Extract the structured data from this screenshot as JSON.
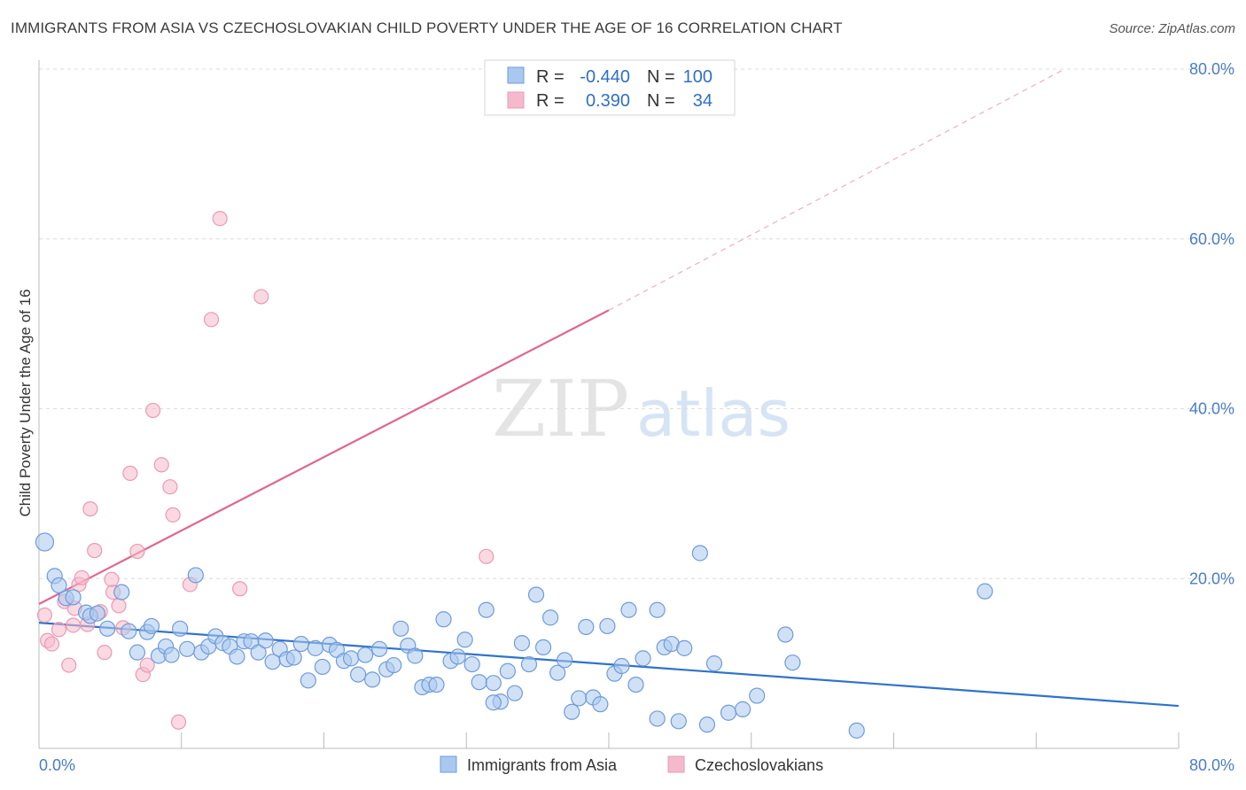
{
  "title": "IMMIGRANTS FROM ASIA VS CZECHOSLOVAKIAN CHILD POVERTY UNDER THE AGE OF 16 CORRELATION CHART",
  "source": "Source: ZipAtlas.com",
  "watermark": {
    "zip": "ZIP",
    "atlas": "atlas"
  },
  "colors": {
    "blue_fill": "#a9c8ef",
    "blue_stroke": "#6f9bd8",
    "blue_line": "#2f73c9",
    "pink_fill": "#f5b9cc",
    "pink_stroke": "#e99ab3",
    "pink_line": "#e0668f",
    "accent_text": "#4a7cc7",
    "grid": "#dddddd"
  },
  "legend": {
    "rows": [
      {
        "r_label": "R =",
        "r_value": "-0.440",
        "n_label": "N =",
        "n_value": "100",
        "series": "blue"
      },
      {
        "r_label": "R =",
        "r_value": "0.390",
        "n_label": "N =",
        "n_value": "34",
        "series": "pink"
      }
    ]
  },
  "chart_data": {
    "type": "scatter",
    "title": "IMMIGRANTS FROM ASIA VS CZECHOSLOVAKIAN CHILD POVERTY UNDER THE AGE OF 16 CORRELATION CHART",
    "xlabel": "",
    "ylabel": "Child Poverty Under the Age of 16",
    "xlim": [
      0,
      80
    ],
    "ylim": [
      0,
      80
    ],
    "x_tick_labels": [
      "0.0%",
      "80.0%"
    ],
    "y_ticks": [
      20,
      40,
      60,
      80
    ],
    "y_tick_labels": [
      "20.0%",
      "40.0%",
      "60.0%",
      "80.0%"
    ],
    "grid": true,
    "legend_position": "top-center",
    "series": [
      {
        "name": "Immigrants from Asia",
        "color": "#a9c8ef",
        "trend": {
          "x": [
            0,
            80
          ],
          "y": [
            14.8,
            5.0
          ],
          "style": "solid"
        },
        "points": [
          [
            0.4,
            24.3
          ],
          [
            1.1,
            20.3
          ],
          [
            1.4,
            19.2
          ],
          [
            1.9,
            17.7
          ],
          [
            2.4,
            17.8
          ],
          [
            3.3,
            16.0
          ],
          [
            3.6,
            15.6
          ],
          [
            4.1,
            15.9
          ],
          [
            4.8,
            14.1
          ],
          [
            5.8,
            18.4
          ],
          [
            6.3,
            13.8
          ],
          [
            6.9,
            11.3
          ],
          [
            7.6,
            13.7
          ],
          [
            7.9,
            14.4
          ],
          [
            8.4,
            10.9
          ],
          [
            8.9,
            12.0
          ],
          [
            9.3,
            11.0
          ],
          [
            9.9,
            14.1
          ],
          [
            10.4,
            11.7
          ],
          [
            11.0,
            20.4
          ],
          [
            11.4,
            11.3
          ],
          [
            11.9,
            12.0
          ],
          [
            12.4,
            13.2
          ],
          [
            12.9,
            12.4
          ],
          [
            13.4,
            12.0
          ],
          [
            13.9,
            10.8
          ],
          [
            14.4,
            12.6
          ],
          [
            14.9,
            12.6
          ],
          [
            15.4,
            11.3
          ],
          [
            15.9,
            12.7
          ],
          [
            16.4,
            10.2
          ],
          [
            16.9,
            11.7
          ],
          [
            17.4,
            10.5
          ],
          [
            17.9,
            10.7
          ],
          [
            18.4,
            12.3
          ],
          [
            18.9,
            8.0
          ],
          [
            19.4,
            11.8
          ],
          [
            19.9,
            9.6
          ],
          [
            20.4,
            12.2
          ],
          [
            20.9,
            11.6
          ],
          [
            21.4,
            10.3
          ],
          [
            21.9,
            10.6
          ],
          [
            22.4,
            8.7
          ],
          [
            22.9,
            11.0
          ],
          [
            23.4,
            8.1
          ],
          [
            23.9,
            11.7
          ],
          [
            24.4,
            9.3
          ],
          [
            24.9,
            9.8
          ],
          [
            25.4,
            14.1
          ],
          [
            25.9,
            12.1
          ],
          [
            26.4,
            10.9
          ],
          [
            26.9,
            7.2
          ],
          [
            27.4,
            7.5
          ],
          [
            27.9,
            7.5
          ],
          [
            28.4,
            15.2
          ],
          [
            28.9,
            10.3
          ],
          [
            29.4,
            10.8
          ],
          [
            29.9,
            12.8
          ],
          [
            30.4,
            9.9
          ],
          [
            30.9,
            7.8
          ],
          [
            31.4,
            16.3
          ],
          [
            31.9,
            7.7
          ],
          [
            32.4,
            5.5
          ],
          [
            32.9,
            9.1
          ],
          [
            33.4,
            6.5
          ],
          [
            33.9,
            12.4
          ],
          [
            34.4,
            9.9
          ],
          [
            34.9,
            18.1
          ],
          [
            35.4,
            11.9
          ],
          [
            35.9,
            15.4
          ],
          [
            36.4,
            8.9
          ],
          [
            36.9,
            10.4
          ],
          [
            37.4,
            4.3
          ],
          [
            37.9,
            5.9
          ],
          [
            38.4,
            14.3
          ],
          [
            38.9,
            6.0
          ],
          [
            39.4,
            5.2
          ],
          [
            39.9,
            14.4
          ],
          [
            40.4,
            8.8
          ],
          [
            40.9,
            9.7
          ],
          [
            41.4,
            16.3
          ],
          [
            41.9,
            7.5
          ],
          [
            42.4,
            10.6
          ],
          [
            43.4,
            16.3
          ],
          [
            43.9,
            11.9
          ],
          [
            44.4,
            12.3
          ],
          [
            44.9,
            3.2
          ],
          [
            45.3,
            11.8
          ],
          [
            46.4,
            23.0
          ],
          [
            46.9,
            2.8
          ],
          [
            47.4,
            10.0
          ],
          [
            48.4,
            4.2
          ],
          [
            49.4,
            4.6
          ],
          [
            50.4,
            6.2
          ],
          [
            52.4,
            13.4
          ],
          [
            52.9,
            10.1
          ],
          [
            57.4,
            2.1
          ],
          [
            66.4,
            18.5
          ],
          [
            43.4,
            3.5
          ],
          [
            31.9,
            5.4
          ]
        ]
      },
      {
        "name": "Czechoslovakians",
        "color": "#f5b9cc",
        "trend": {
          "x": [
            0,
            40
          ],
          "y": [
            17.0,
            51.6
          ],
          "style": "solid",
          "dashed_to": [
            72,
            80
          ]
        },
        "points": [
          [
            0.4,
            15.7
          ],
          [
            0.6,
            12.7
          ],
          [
            0.9,
            12.3
          ],
          [
            1.4,
            14.0
          ],
          [
            1.8,
            17.3
          ],
          [
            2.1,
            9.8
          ],
          [
            2.4,
            14.5
          ],
          [
            2.8,
            19.3
          ],
          [
            3.0,
            20.1
          ],
          [
            3.4,
            14.6
          ],
          [
            3.6,
            28.2
          ],
          [
            3.9,
            23.3
          ],
          [
            4.3,
            16.1
          ],
          [
            4.6,
            11.3
          ],
          [
            5.2,
            18.4
          ],
          [
            5.6,
            16.8
          ],
          [
            5.9,
            14.2
          ],
          [
            6.4,
            32.4
          ],
          [
            6.9,
            23.2
          ],
          [
            7.3,
            8.7
          ],
          [
            7.6,
            9.8
          ],
          [
            8.0,
            39.8
          ],
          [
            8.6,
            33.4
          ],
          [
            9.2,
            30.8
          ],
          [
            9.4,
            27.5
          ],
          [
            9.8,
            3.1
          ],
          [
            10.6,
            19.3
          ],
          [
            12.1,
            50.5
          ],
          [
            12.7,
            62.4
          ],
          [
            14.1,
            18.8
          ],
          [
            15.6,
            53.2
          ],
          [
            31.4,
            22.6
          ],
          [
            5.1,
            19.9
          ],
          [
            2.5,
            16.5
          ]
        ]
      }
    ]
  }
}
